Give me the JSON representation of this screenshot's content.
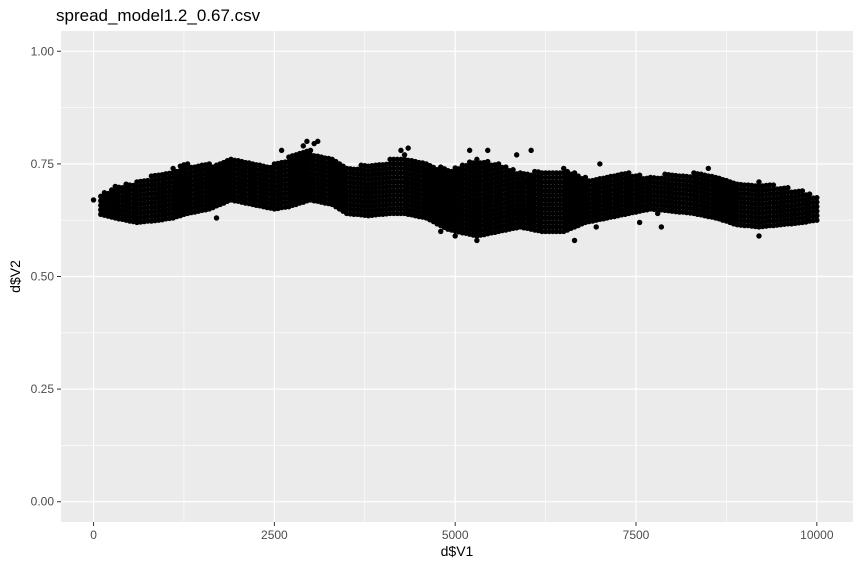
{
  "chart_data": {
    "type": "scatter",
    "title": "spread_model1.2_0.67.csv",
    "xlabel": "d$V1",
    "ylabel": "d$V2",
    "xlim": [
      -450,
      10500
    ],
    "ylim": [
      -0.045,
      1.045
    ],
    "x_ticks": [
      0,
      2500,
      5000,
      7500,
      10000
    ],
    "x_tick_labels": [
      "0",
      "2500",
      "5000",
      "7500",
      "10000"
    ],
    "y_ticks": [
      0.0,
      0.25,
      0.5,
      0.75,
      1.0
    ],
    "y_tick_labels": [
      "0.00",
      "0.25",
      "0.50",
      "0.75",
      "1.00"
    ],
    "grid": true,
    "panel_background": "#ebebeb",
    "point_color": "#000000",
    "first_point": {
      "x": 0,
      "y": 0.67
    },
    "column_step": 50,
    "point_step": 0.01,
    "columns": [
      {
        "x": 50,
        "min": 0.64,
        "max": 0.68
      },
      {
        "x": 300,
        "min": 0.63,
        "max": 0.7
      },
      {
        "x": 600,
        "min": 0.62,
        "max": 0.71
      },
      {
        "x": 900,
        "min": 0.625,
        "max": 0.73
      },
      {
        "x": 1100,
        "min": 0.63,
        "max": 0.74
      },
      {
        "x": 1300,
        "min": 0.64,
        "max": 0.75
      },
      {
        "x": 1600,
        "min": 0.65,
        "max": 0.75
      },
      {
        "x": 1900,
        "min": 0.67,
        "max": 0.76
      },
      {
        "x": 2200,
        "min": 0.66,
        "max": 0.75
      },
      {
        "x": 2500,
        "min": 0.65,
        "max": 0.75
      },
      {
        "x": 2700,
        "min": 0.655,
        "max": 0.765
      },
      {
        "x": 3000,
        "min": 0.67,
        "max": 0.78
      },
      {
        "x": 3300,
        "min": 0.66,
        "max": 0.76
      },
      {
        "x": 3500,
        "min": 0.64,
        "max": 0.74
      },
      {
        "x": 3800,
        "min": 0.635,
        "max": 0.75
      },
      {
        "x": 4100,
        "min": 0.64,
        "max": 0.76
      },
      {
        "x": 4300,
        "min": 0.64,
        "max": 0.77
      },
      {
        "x": 4600,
        "min": 0.63,
        "max": 0.75
      },
      {
        "x": 4900,
        "min": 0.605,
        "max": 0.74
      },
      {
        "x": 5300,
        "min": 0.59,
        "max": 0.76
      },
      {
        "x": 5600,
        "min": 0.6,
        "max": 0.75
      },
      {
        "x": 5900,
        "min": 0.61,
        "max": 0.73
      },
      {
        "x": 6200,
        "min": 0.6,
        "max": 0.735
      },
      {
        "x": 6500,
        "min": 0.6,
        "max": 0.74
      },
      {
        "x": 6800,
        "min": 0.62,
        "max": 0.72
      },
      {
        "x": 7100,
        "min": 0.63,
        "max": 0.72
      },
      {
        "x": 7400,
        "min": 0.64,
        "max": 0.73
      },
      {
        "x": 7700,
        "min": 0.65,
        "max": 0.72
      },
      {
        "x": 8000,
        "min": 0.645,
        "max": 0.73
      },
      {
        "x": 8300,
        "min": 0.64,
        "max": 0.73
      },
      {
        "x": 8600,
        "min": 0.63,
        "max": 0.72
      },
      {
        "x": 8900,
        "min": 0.615,
        "max": 0.71
      },
      {
        "x": 9200,
        "min": 0.61,
        "max": 0.71
      },
      {
        "x": 9500,
        "min": 0.615,
        "max": 0.7
      },
      {
        "x": 9800,
        "min": 0.62,
        "max": 0.69
      },
      {
        "x": 10000,
        "min": 0.625,
        "max": 0.675
      }
    ],
    "outliers": [
      {
        "x": 2600,
        "y": 0.78
      },
      {
        "x": 2900,
        "y": 0.79
      },
      {
        "x": 2950,
        "y": 0.8
      },
      {
        "x": 3050,
        "y": 0.795
      },
      {
        "x": 3100,
        "y": 0.8
      },
      {
        "x": 4250,
        "y": 0.78
      },
      {
        "x": 4350,
        "y": 0.785
      },
      {
        "x": 5200,
        "y": 0.78
      },
      {
        "x": 5450,
        "y": 0.78
      },
      {
        "x": 5850,
        "y": 0.77
      },
      {
        "x": 6050,
        "y": 0.78
      },
      {
        "x": 7000,
        "y": 0.75
      },
      {
        "x": 8500,
        "y": 0.74
      },
      {
        "x": 6650,
        "y": 0.58
      },
      {
        "x": 5300,
        "y": 0.58
      },
      {
        "x": 5000,
        "y": 0.59
      },
      {
        "x": 4800,
        "y": 0.6
      },
      {
        "x": 9200,
        "y": 0.59
      },
      {
        "x": 7550,
        "y": 0.62
      },
      {
        "x": 7850,
        "y": 0.61
      },
      {
        "x": 7800,
        "y": 0.64
      },
      {
        "x": 6950,
        "y": 0.61
      },
      {
        "x": 1700,
        "y": 0.63
      },
      {
        "x": 2050,
        "y": 0.69
      },
      {
        "x": 4800,
        "y": 0.72
      },
      {
        "x": 4900,
        "y": 0.7
      },
      {
        "x": 6000,
        "y": 0.71
      },
      {
        "x": 6300,
        "y": 0.66
      }
    ]
  }
}
